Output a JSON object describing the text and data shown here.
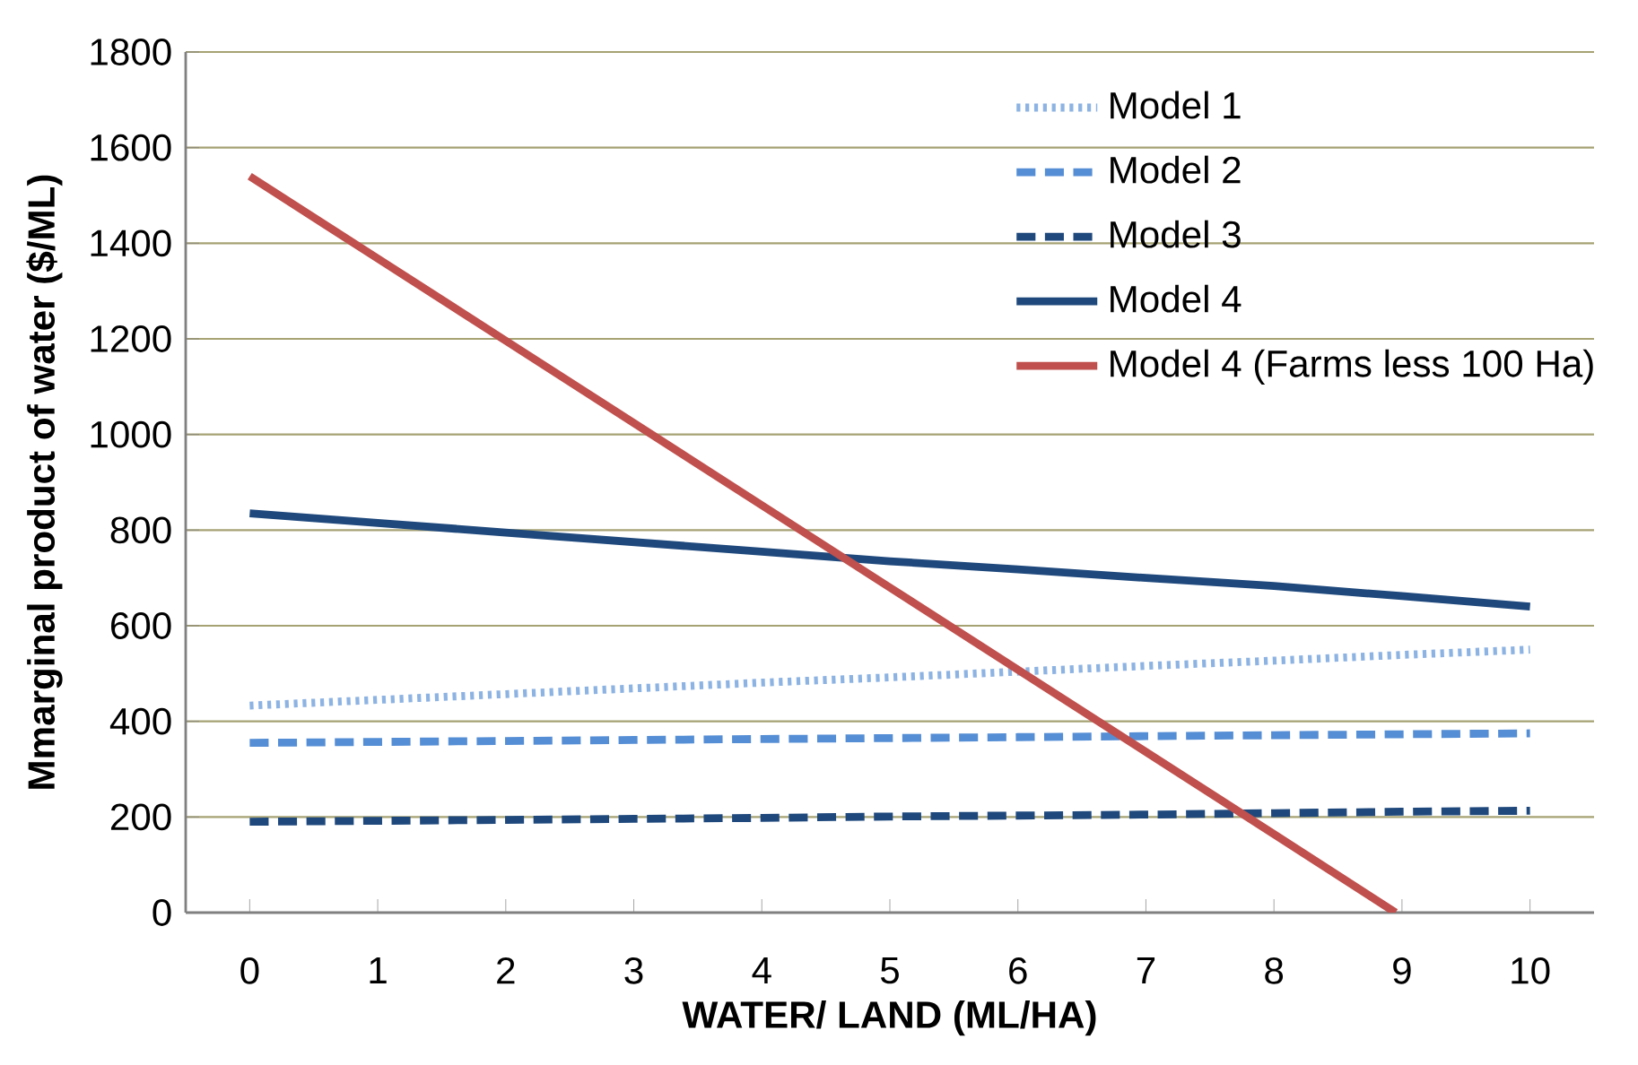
{
  "chart_data": {
    "type": "line",
    "xlabel": "WATER/ LAND (ML/HA)",
    "ylabel": "Mmarginal product of water ($/ML)",
    "x": [
      0,
      1,
      2,
      3,
      4,
      5,
      6,
      7,
      8,
      9,
      10
    ],
    "xlim": [
      -0.5,
      10.5
    ],
    "xticks": [
      0,
      1,
      2,
      3,
      4,
      5,
      6,
      7,
      8,
      9,
      10
    ],
    "ylim": [
      0,
      1800
    ],
    "yticks": [
      0,
      200,
      400,
      600,
      800,
      1000,
      1200,
      1400,
      1600,
      1800
    ],
    "grid": "y",
    "legend": "top right",
    "marker": "none",
    "series": [
      {
        "name": "Model 1",
        "color": "#8db3e2",
        "line_style": "dotted",
        "values": [
          433,
          445,
          457,
          469,
          481,
          492,
          504,
          516,
          527,
          539,
          550
        ]
      },
      {
        "name": "Model 2",
        "color": "#558ed5",
        "line_style": "dashed",
        "values": [
          355,
          357,
          359,
          361,
          363,
          365,
          367,
          369,
          371,
          373,
          375
        ]
      },
      {
        "name": "Model 3",
        "color": "#1f497d",
        "line_style": "dashed",
        "values": [
          190,
          192,
          194,
          196,
          198,
          201,
          203,
          205,
          208,
          211,
          213
        ]
      },
      {
        "name": "Model 4",
        "color": "#1f497d",
        "line_style": "solid",
        "values": [
          835,
          815,
          795,
          775,
          755,
          735,
          718,
          700,
          683,
          662,
          640
        ]
      },
      {
        "name": "Model 4 (Farms less 100 Ha)",
        "color": "#c0504d",
        "line_style": "solid",
        "x": [
          0,
          1,
          2,
          3,
          4,
          5,
          6,
          7,
          8,
          8.95
        ],
        "values": [
          1540,
          1368,
          1196,
          1024,
          852,
          680,
          508,
          336,
          164,
          0
        ]
      }
    ]
  }
}
